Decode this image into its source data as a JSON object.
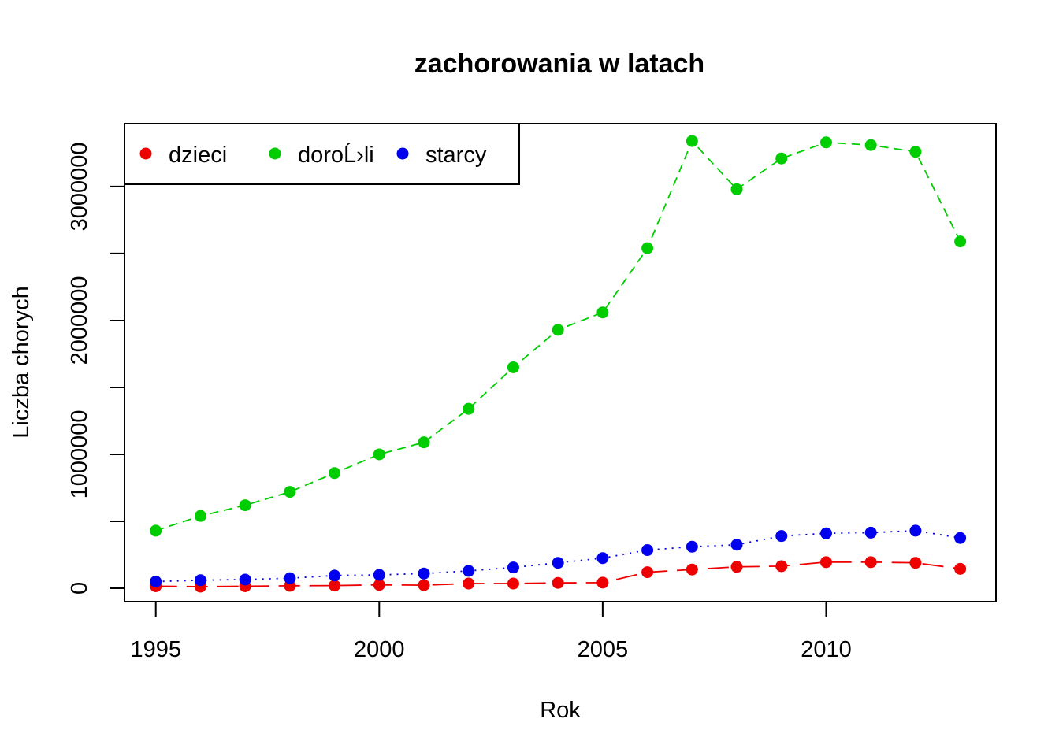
{
  "chart_data": {
    "type": "line",
    "title": "zachorowania w latach",
    "xlabel": "Rok",
    "ylabel": "Liczba chorych",
    "x": [
      1995,
      1996,
      1997,
      1998,
      1999,
      2000,
      2001,
      2002,
      2003,
      2004,
      2005,
      2006,
      2007,
      2008,
      2009,
      2010,
      2011,
      2012,
      2013
    ],
    "xlim": [
      1994.3,
      2013.8
    ],
    "ylim": [
      -100000,
      3470000
    ],
    "x_ticks": [
      1995,
      2000,
      2005,
      2010
    ],
    "y_ticks": [
      0,
      1000000,
      2000000,
      3000000
    ],
    "y_minor_ticks": [
      500000,
      1500000,
      2500000
    ],
    "x_tick_labels": [
      "1995",
      "2000",
      "2005",
      "2010"
    ],
    "y_tick_labels": [
      "0",
      "1000000",
      "2000000",
      "3000000"
    ],
    "grid": false,
    "legend_position": "top-left",
    "series": [
      {
        "name": "dzieci",
        "color": "#ee0000",
        "line_style": "longdash",
        "values": [
          15000,
          12000,
          15000,
          18000,
          20000,
          25000,
          23000,
          35000,
          35000,
          40000,
          42000,
          120000,
          140000,
          160000,
          165000,
          195000,
          195000,
          190000,
          145000
        ]
      },
      {
        "name": "doroĹ›li",
        "color": "#00cd00",
        "line_style": "dashed",
        "values": [
          430000,
          540000,
          620000,
          720000,
          860000,
          1000000,
          1090000,
          1340000,
          1650000,
          1930000,
          2060000,
          2540000,
          3340000,
          2980000,
          3210000,
          3330000,
          3310000,
          3260000,
          2590000
        ]
      },
      {
        "name": "starcy",
        "color": "#0000ee",
        "line_style": "dotted",
        "values": [
          50000,
          60000,
          65000,
          75000,
          95000,
          100000,
          110000,
          130000,
          155000,
          190000,
          225000,
          285000,
          310000,
          325000,
          390000,
          410000,
          415000,
          430000,
          375000
        ]
      }
    ]
  }
}
